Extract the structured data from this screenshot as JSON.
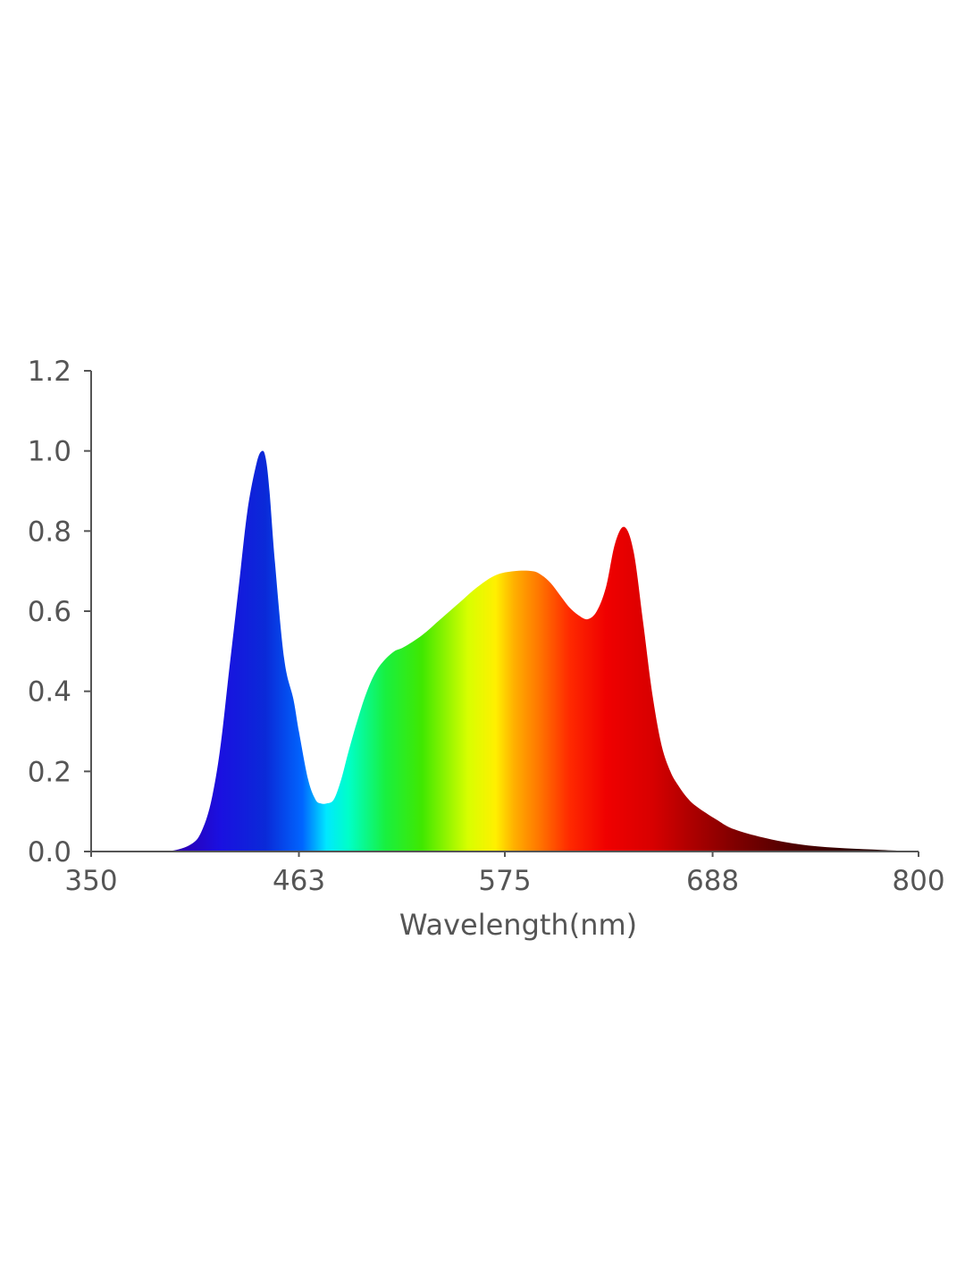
{
  "chart_data": {
    "type": "area",
    "title": "",
    "xlabel": "Wavelength(nm)",
    "ylabel": "",
    "xlim": [
      350,
      800
    ],
    "ylim": [
      0.0,
      1.2
    ],
    "x_ticks": [
      "350",
      "463",
      "575",
      "688",
      "800"
    ],
    "y_ticks": [
      "0.0",
      "0.2",
      "0.4",
      "0.6",
      "0.8",
      "1.0",
      "1.2"
    ],
    "grid": false,
    "legend": "none",
    "fill": "visible-spectrum gradient (violet-blue to deep red)",
    "series": [
      {
        "x": [
          350,
          380,
          395,
          405,
          410,
          415,
          420,
          425,
          430,
          435,
          440,
          443,
          445,
          447,
          450,
          455,
          460,
          463,
          468,
          472,
          475,
          478,
          482,
          486,
          490,
          495,
          500,
          505,
          510,
          515,
          520,
          530,
          540,
          550,
          560,
          570,
          580,
          590,
          595,
          600,
          605,
          610,
          615,
          620,
          625,
          630,
          635,
          640,
          645,
          650,
          655,
          660,
          665,
          670,
          675,
          680,
          690,
          700,
          720,
          740,
          760,
          780,
          800
        ],
        "y": [
          0.0,
          0.0,
          0.003,
          0.02,
          0.05,
          0.12,
          0.25,
          0.45,
          0.65,
          0.85,
          0.97,
          1.0,
          0.98,
          0.9,
          0.72,
          0.48,
          0.38,
          0.3,
          0.18,
          0.13,
          0.12,
          0.12,
          0.13,
          0.18,
          0.25,
          0.33,
          0.4,
          0.45,
          0.48,
          0.5,
          0.51,
          0.54,
          0.58,
          0.62,
          0.66,
          0.69,
          0.7,
          0.7,
          0.69,
          0.67,
          0.64,
          0.61,
          0.59,
          0.58,
          0.6,
          0.66,
          0.77,
          0.81,
          0.75,
          0.58,
          0.4,
          0.27,
          0.2,
          0.16,
          0.13,
          0.11,
          0.08,
          0.055,
          0.03,
          0.015,
          0.008,
          0.004,
          0.0
        ]
      }
    ]
  }
}
